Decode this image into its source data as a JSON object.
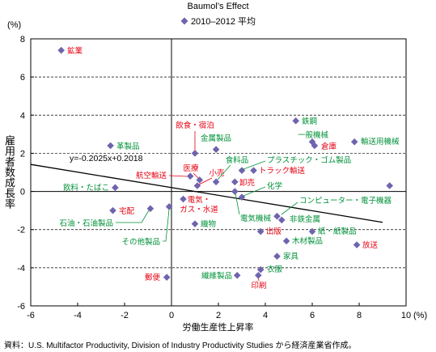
{
  "chart_data": {
    "type": "scatter",
    "title": "Baumol’s Effect",
    "legend": [
      {
        "marker": "diamond",
        "label": "2010–2012 平均",
        "color": "#6e64ae"
      }
    ],
    "xlabel": "労働生産性上昇率",
    "ylabel": "雇用者数成長率",
    "x_unit": "(%)",
    "y_unit": "(%)",
    "xlim": [
      -6,
      10
    ],
    "ylim": [
      -6,
      8
    ],
    "x_ticks": [
      -6,
      -4,
      -2,
      0,
      2,
      4,
      6,
      8,
      10
    ],
    "y_ticks": [
      8,
      6,
      4,
      2,
      0,
      -2,
      -4,
      -6
    ],
    "grid": "horizontal dashed",
    "regression": {
      "label": "y=-0.2025x+0.2018",
      "slope": -0.2025,
      "intercept": 0.2018,
      "x_range": [
        -6,
        9
      ]
    },
    "points": [
      {
        "label": "鉱業",
        "x": -4.7,
        "y": 7.4,
        "color": "#e50012"
      },
      {
        "label": "革製品",
        "x": -2.6,
        "y": 2.4,
        "color": "#00913a"
      },
      {
        "label": "飲料・たばこ",
        "x": -2.4,
        "y": 0.2,
        "color": "#00913a"
      },
      {
        "label": "宅配",
        "x": -2.5,
        "y": -1.0,
        "color": "#e50012"
      },
      {
        "label": "石油・石油製品",
        "x": -0.9,
        "y": -0.9,
        "color": "#00913a"
      },
      {
        "label": "その他製品",
        "x": -0.1,
        "y": -0.8,
        "color": "#00913a"
      },
      {
        "label": "郵便",
        "x": -0.2,
        "y": -4.5,
        "color": "#e50012"
      },
      {
        "label": "飲食・宿泊",
        "x": 1.0,
        "y": 2.0,
        "color": "#e50012"
      },
      {
        "label": "金属製品",
        "x": 1.9,
        "y": 2.2,
        "color": "#00913a"
      },
      {
        "label": "航空輸送",
        "x": 0.8,
        "y": 0.8,
        "color": "#e50012"
      },
      {
        "label": "医療",
        "x": 1.2,
        "y": 0.6,
        "color": "#e50012"
      },
      {
        "label": "小売",
        "x": 1.1,
        "y": 0.3,
        "color": "#e50012"
      },
      {
        "label": "食料品",
        "x": 1.9,
        "y": 0.5,
        "color": "#00913a"
      },
      {
        "label": "卸売",
        "x": 2.7,
        "y": 0.5,
        "color": "#e50012"
      },
      {
        "label": "プラスチック・ゴム製品",
        "x": 3.0,
        "y": 1.1,
        "color": "#00913a"
      },
      {
        "label": "トラック輸送",
        "x": 3.5,
        "y": 1.1,
        "color": "#e50012"
      },
      {
        "label": "電気機械",
        "x": 2.7,
        "y": 0.0,
        "color": "#00913a"
      },
      {
        "label": "化学",
        "x": 3.0,
        "y": -0.3,
        "color": "#00913a"
      },
      {
        "label": "電気・ガス・水道",
        "x": 0.5,
        "y": -0.4,
        "color": "#e50012"
      },
      {
        "label": "織物",
        "x": 1.0,
        "y": -1.7,
        "color": "#00913a"
      },
      {
        "label": "コンピューター・電子機器",
        "x": 4.5,
        "y": -1.3,
        "color": "#00913a"
      },
      {
        "label": "非鉄金属",
        "x": 4.7,
        "y": -1.5,
        "color": "#00913a"
      },
      {
        "label": "出版",
        "x": 3.8,
        "y": -2.1,
        "color": "#e50012"
      },
      {
        "label": "紙・紙製品",
        "x": 6.0,
        "y": -2.1,
        "color": "#00913a"
      },
      {
        "label": "木材製品",
        "x": 4.9,
        "y": -2.6,
        "color": "#00913a"
      },
      {
        "label": "放送",
        "x": 7.9,
        "y": -2.8,
        "color": "#e50012"
      },
      {
        "label": "家具",
        "x": 4.5,
        "y": -3.4,
        "color": "#00913a"
      },
      {
        "label": "衣服",
        "x": 3.8,
        "y": -4.1,
        "color": "#00913a"
      },
      {
        "label": "印刷",
        "x": 3.7,
        "y": -4.4,
        "color": "#e50012"
      },
      {
        "label": "繊維製品",
        "x": 2.8,
        "y": -4.4,
        "color": "#00913a"
      },
      {
        "label": "鉄鋼",
        "x": 5.3,
        "y": 3.7,
        "color": "#00913a"
      },
      {
        "label": "一般機械",
        "x": 6.0,
        "y": 2.6,
        "color": "#00913a"
      },
      {
        "label": "倉庫",
        "x": 6.1,
        "y": 2.4,
        "color": "#e50012"
      },
      {
        "label": "輸送用機械",
        "x": 7.8,
        "y": 2.6,
        "color": "#00913a"
      },
      {
        "label": "",
        "x": 9.3,
        "y": 0.3,
        "color": "#6e64ae"
      }
    ]
  },
  "source": "資料：U.S. Multifactor Productivity, Division of Industry Productivity Studies から経済産業省作成。"
}
